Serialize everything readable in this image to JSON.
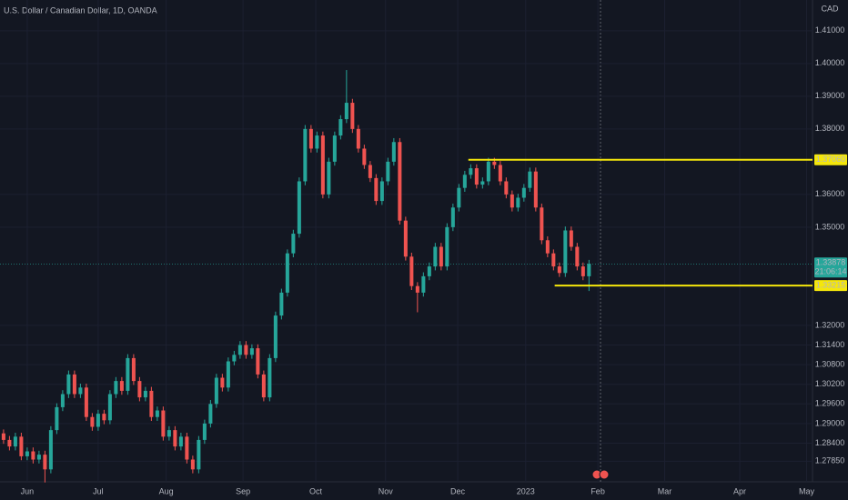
{
  "chart_data": {
    "type": "candlestick",
    "title": "U.S. Dollar / Canadian Dollar, 1D, OANDA",
    "currency": "CAD",
    "up_color": "#26a69a",
    "down_color": "#ef5350",
    "open": [
      1.287,
      1.285,
      1.283,
      1.286,
      1.28,
      1.2815,
      1.279,
      1.2805,
      1.276,
      1.288,
      1.295,
      1.299,
      1.305,
      1.299,
      1.301,
      1.292,
      1.289,
      1.293,
      1.291,
      1.299,
      1.303,
      1.3,
      1.31,
      1.303,
      1.298,
      1.3,
      1.292,
      1.294,
      1.286,
      1.288,
      1.283,
      1.286,
      1.279,
      1.276,
      1.285,
      1.29,
      1.296,
      1.304,
      1.301,
      1.309,
      1.311,
      1.314,
      1.311,
      1.313,
      1.305,
      1.298,
      1.31,
      1.323,
      1.33,
      1.342,
      1.348,
      1.364,
      1.38,
      1.374,
      1.378,
      1.36,
      1.37,
      1.378,
      1.383,
      1.388,
      1.38,
      1.374,
      1.369,
      1.365,
      1.358,
      1.364,
      1.37,
      1.376,
      1.352,
      1.341,
      1.332,
      1.33,
      1.335,
      1.338,
      1.344,
      1.338,
      1.35,
      1.356,
      1.362,
      1.366,
      1.368,
      1.363,
      1.364,
      1.37,
      1.369,
      1.364,
      1.36,
      1.356,
      1.359,
      1.362,
      1.367,
      1.356,
      1.346,
      1.342,
      1.338,
      1.336,
      1.349,
      1.344,
      1.338,
      1.335
    ],
    "high": [
      1.2882,
      1.2862,
      1.2872,
      1.2872,
      1.2827,
      1.2827,
      1.2817,
      1.2817,
      1.2892,
      1.2962,
      1.3002,
      1.3062,
      1.3062,
      1.3022,
      1.3022,
      1.2932,
      1.2942,
      1.2942,
      1.3002,
      1.3042,
      1.3042,
      1.3112,
      1.3112,
      1.3042,
      1.3012,
      1.3012,
      1.2952,
      1.2952,
      1.2892,
      1.2892,
      1.2872,
      1.2872,
      1.2802,
      1.2862,
      1.2912,
      1.2972,
      1.3052,
      1.3052,
      1.3102,
      1.3122,
      1.3152,
      1.3152,
      1.3142,
      1.3142,
      1.3062,
      1.3112,
      1.3242,
      1.3312,
      1.3432,
      1.3492,
      1.3652,
      1.3812,
      1.3812,
      1.3792,
      1.3792,
      1.3712,
      1.3792,
      1.3842,
      1.398,
      1.3892,
      1.3812,
      1.3752,
      1.3702,
      1.3662,
      1.3652,
      1.3712,
      1.3772,
      1.3772,
      1.3532,
      1.3422,
      1.3332,
      1.3362,
      1.3392,
      1.3452,
      1.3452,
      1.3512,
      1.3572,
      1.3632,
      1.3672,
      1.3692,
      1.3692,
      1.3652,
      1.3712,
      1.3712,
      1.3702,
      1.3652,
      1.3612,
      1.3602,
      1.3632,
      1.3682,
      1.3682,
      1.3572,
      1.3472,
      1.3432,
      1.3392,
      1.3502,
      1.3502,
      1.3452,
      1.3392,
      1.34
    ],
    "low": [
      1.2838,
      1.2818,
      1.2818,
      1.2788,
      1.2788,
      1.2778,
      1.2778,
      1.272,
      1.2748,
      1.2868,
      1.2938,
      1.2978,
      1.2978,
      1.2978,
      1.2908,
      1.2878,
      1.2878,
      1.2898,
      1.2898,
      1.2978,
      1.2988,
      1.2988,
      1.3018,
      1.2968,
      1.2968,
      1.2908,
      1.2908,
      1.2848,
      1.2848,
      1.2818,
      1.2818,
      1.2778,
      1.2748,
      1.2748,
      1.2838,
      1.2888,
      1.2948,
      1.2998,
      1.2998,
      1.3078,
      1.3098,
      1.3098,
      1.3098,
      1.3038,
      1.2968,
      1.2968,
      1.3088,
      1.3218,
      1.3288,
      1.3408,
      1.3468,
      1.3628,
      1.3728,
      1.3728,
      1.3588,
      1.3588,
      1.3688,
      1.3768,
      1.3818,
      1.3788,
      1.3728,
      1.3678,
      1.3638,
      1.3568,
      1.3568,
      1.3628,
      1.3688,
      1.3508,
      1.3398,
      1.3308,
      1.324,
      1.3288,
      1.3338,
      1.3368,
      1.3368,
      1.3368,
      1.3488,
      1.3548,
      1.3608,
      1.3648,
      1.3618,
      1.3618,
      1.3628,
      1.3678,
      1.3628,
      1.3588,
      1.3548,
      1.3548,
      1.3578,
      1.3608,
      1.3548,
      1.3448,
      1.3408,
      1.3368,
      1.3348,
      1.3348,
      1.3428,
      1.3368,
      1.3338,
      1.3305
    ],
    "close": [
      1.285,
      1.283,
      1.286,
      1.28,
      1.2815,
      1.279,
      1.2805,
      1.276,
      1.288,
      1.295,
      1.299,
      1.305,
      1.299,
      1.301,
      1.292,
      1.289,
      1.293,
      1.291,
      1.299,
      1.303,
      1.3,
      1.31,
      1.303,
      1.298,
      1.3,
      1.292,
      1.294,
      1.286,
      1.288,
      1.283,
      1.286,
      1.279,
      1.276,
      1.285,
      1.29,
      1.296,
      1.304,
      1.301,
      1.309,
      1.311,
      1.314,
      1.311,
      1.313,
      1.305,
      1.298,
      1.31,
      1.323,
      1.33,
      1.342,
      1.348,
      1.364,
      1.38,
      1.374,
      1.378,
      1.36,
      1.37,
      1.378,
      1.383,
      1.388,
      1.38,
      1.374,
      1.369,
      1.365,
      1.358,
      1.364,
      1.37,
      1.376,
      1.352,
      1.341,
      1.332,
      1.33,
      1.335,
      1.338,
      1.344,
      1.338,
      1.35,
      1.356,
      1.362,
      1.366,
      1.368,
      1.363,
      1.364,
      1.37,
      1.369,
      1.364,
      1.36,
      1.356,
      1.359,
      1.362,
      1.367,
      1.356,
      1.346,
      1.342,
      1.338,
      1.336,
      1.349,
      1.344,
      1.338,
      1.335,
      1.3388
    ],
    "xlim": [
      -0.6,
      136.8
    ],
    "xticks": [
      {
        "value": 4,
        "label": "Jun"
      },
      {
        "value": 16,
        "label": "Jul"
      },
      {
        "value": 27.5,
        "label": "Aug"
      },
      {
        "value": 40.5,
        "label": "Sep"
      },
      {
        "value": 52.8,
        "label": "Oct"
      },
      {
        "value": 64.6,
        "label": "Nov"
      },
      {
        "value": 76.8,
        "label": "Dec"
      },
      {
        "value": 88.3,
        "label": "2023"
      },
      {
        "value": 100.5,
        "label": "Feb"
      },
      {
        "value": 111.8,
        "label": "Mar"
      },
      {
        "value": 124.5,
        "label": "Apr"
      },
      {
        "value": 135.8,
        "label": "May"
      }
    ],
    "ylim": [
      1.2722,
      1.4194
    ],
    "yticks": [
      {
        "value": 1.41,
        "label": "1.41000"
      },
      {
        "value": 1.4,
        "label": "1.40000"
      },
      {
        "value": 1.39,
        "label": "1.39000"
      },
      {
        "value": 1.38,
        "label": "1.38000"
      },
      {
        "value": 1.36,
        "label": "1.36000"
      },
      {
        "value": 1.35,
        "label": "1.35000"
      },
      {
        "value": 1.32,
        "label": "1.32000"
      },
      {
        "value": 1.314,
        "label": "1.31400"
      },
      {
        "value": 1.308,
        "label": "1.30800"
      },
      {
        "value": 1.302,
        "label": "1.30200"
      },
      {
        "value": 1.296,
        "label": "1.29600"
      },
      {
        "value": 1.29,
        "label": "1.29000"
      },
      {
        "value": 1.284,
        "label": "1.28400"
      },
      {
        "value": 1.2785,
        "label": "1.27850"
      }
    ],
    "grid": true,
    "levels": [
      {
        "value": 1.3706,
        "label": "1.37060",
        "x_start": 78.6,
        "color": "#f5e70b"
      },
      {
        "value": 1.33215,
        "label": "1.33215",
        "x_start": 93.2,
        "color": "#f5e70b"
      }
    ],
    "last_price": {
      "value": 1.33878,
      "label": "1.33878",
      "countdown": "21:06:14"
    }
  }
}
